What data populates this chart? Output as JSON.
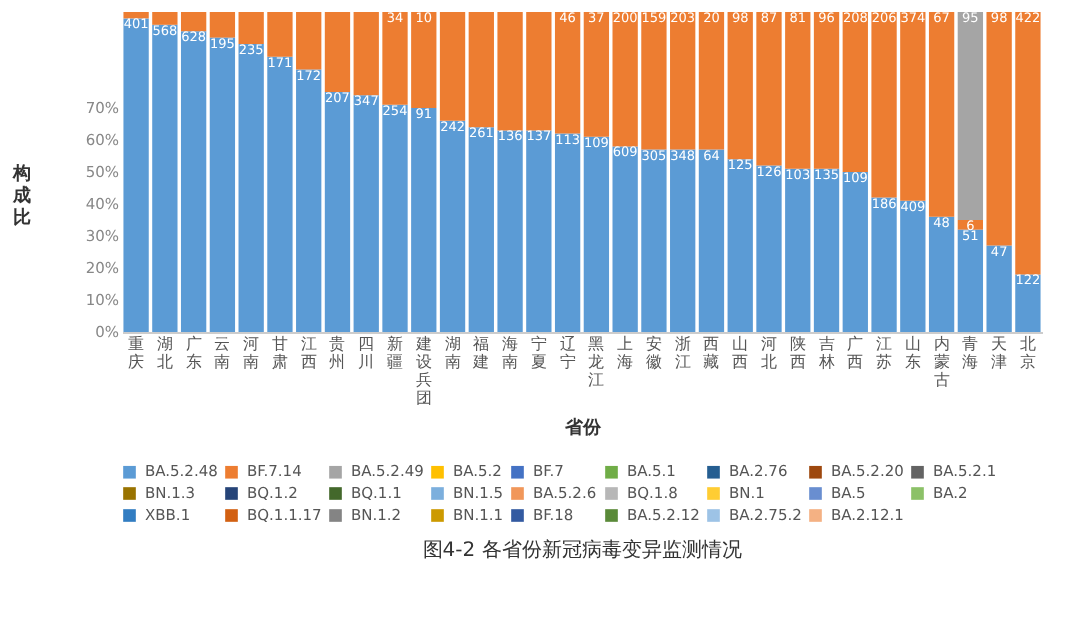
{
  "chart_data": {
    "type": "bar",
    "stacked": true,
    "title": "图4-2 各省份新冠病毒变异监测情况",
    "xlabel": "省份",
    "ylabel": "构成比",
    "categories": [
      "重庆",
      "湖北",
      "广东",
      "云南",
      "河南",
      "甘肃",
      "江西",
      "贵州",
      "四川",
      "新疆",
      "建设兵团",
      "湖南",
      "福建",
      "海南",
      "宁夏",
      "辽宁",
      "黑龙江",
      "上海",
      "安徽",
      "浙江",
      "西藏",
      "山西",
      "河北",
      "陕西",
      "吉林",
      "广西",
      "江苏",
      "山东",
      "内蒙古",
      "青海",
      "天津",
      "北京"
    ],
    "ylim": [
      0,
      100
    ],
    "yticks": [
      {
        "value": 0,
        "label": "0%"
      },
      {
        "value": 10,
        "label": "10%"
      },
      {
        "value": 20,
        "label": "20%"
      },
      {
        "value": 30,
        "label": "30%"
      },
      {
        "value": 40,
        "label": "40%"
      },
      {
        "value": 50,
        "label": "50%"
      },
      {
        "value": 60,
        "label": "60%"
      },
      {
        "value": 70,
        "label": "70%"
      }
    ],
    "legend": "bottom",
    "grid": false,
    "series": [
      {
        "name": "BA.5.2.48",
        "color": "#5b9bd5",
        "values": [
          98,
          96,
          94,
          92,
          90,
          86,
          82,
          75,
          74,
          71,
          70,
          66,
          64,
          63,
          63,
          62,
          61,
          58,
          57,
          57,
          57,
          54,
          52,
          51,
          51,
          50,
          42,
          41,
          36,
          32,
          27,
          18
        ]
      },
      {
        "name": "BF.7.14",
        "color": "#ed7d31",
        "values": [
          2,
          4,
          6,
          8,
          10,
          14,
          18,
          25,
          26,
          29,
          30,
          34,
          36,
          37,
          37,
          38,
          39,
          42,
          43,
          43,
          43,
          46,
          48,
          49,
          49,
          50,
          58,
          59,
          64,
          3,
          73,
          82
        ]
      },
      {
        "name": "BA.5.2.49",
        "color": "#a5a5a5",
        "values": [
          null,
          null,
          null,
          null,
          null,
          null,
          null,
          null,
          null,
          null,
          null,
          null,
          null,
          null,
          null,
          null,
          null,
          null,
          null,
          null,
          null,
          null,
          null,
          null,
          null,
          null,
          null,
          null,
          null,
          65,
          null,
          null
        ]
      },
      {
        "name": "BA.5.2",
        "color": "#ffc000",
        "values": [
          null,
          null,
          null,
          null,
          null,
          null,
          null,
          null,
          null,
          null,
          null,
          null,
          null,
          null,
          null,
          null,
          null,
          null,
          null,
          null,
          null,
          null,
          null,
          null,
          null,
          null,
          null,
          null,
          null,
          null,
          null,
          null
        ]
      },
      {
        "name": "BF.7",
        "color": "#4472c4",
        "values": [
          null,
          null,
          null,
          null,
          null,
          null,
          null,
          null,
          null,
          null,
          null,
          null,
          null,
          null,
          null,
          null,
          null,
          null,
          null,
          null,
          null,
          null,
          null,
          null,
          null,
          null,
          null,
          null,
          null,
          null,
          null,
          null
        ]
      },
      {
        "name": "BA.5.1",
        "color": "#70ad47",
        "values": [
          null,
          null,
          null,
          null,
          null,
          null,
          null,
          null,
          null,
          null,
          null,
          null,
          null,
          null,
          null,
          null,
          null,
          null,
          null,
          null,
          null,
          null,
          null,
          null,
          null,
          null,
          null,
          null,
          null,
          null,
          null,
          null
        ]
      },
      {
        "name": "BA.2.76",
        "color": "#255e91",
        "values": [
          null,
          null,
          null,
          null,
          null,
          null,
          null,
          null,
          null,
          null,
          null,
          null,
          null,
          null,
          null,
          null,
          null,
          null,
          null,
          null,
          null,
          null,
          null,
          null,
          null,
          null,
          null,
          null,
          null,
          null,
          null,
          null
        ]
      },
      {
        "name": "BA.5.2.20",
        "color": "#9e480e",
        "values": [
          null,
          null,
          null,
          null,
          null,
          null,
          null,
          null,
          null,
          null,
          null,
          null,
          null,
          null,
          null,
          null,
          null,
          null,
          null,
          null,
          null,
          null,
          null,
          null,
          null,
          null,
          null,
          null,
          null,
          null,
          null,
          null
        ]
      },
      {
        "name": "BA.5.2.1",
        "color": "#636363",
        "values": [
          null,
          null,
          null,
          null,
          null,
          null,
          null,
          null,
          null,
          null,
          null,
          null,
          null,
          null,
          null,
          null,
          null,
          null,
          null,
          null,
          null,
          null,
          null,
          null,
          null,
          null,
          null,
          null,
          null,
          null,
          null,
          null
        ]
      },
      {
        "name": "BN.1.3",
        "color": "#997300",
        "values": [
          null,
          null,
          null,
          null,
          null,
          null,
          null,
          null,
          null,
          null,
          null,
          null,
          null,
          null,
          null,
          null,
          null,
          null,
          null,
          null,
          null,
          null,
          null,
          null,
          null,
          null,
          null,
          null,
          null,
          null,
          null,
          null
        ]
      },
      {
        "name": "BQ.1.2",
        "color": "#264478",
        "values": [
          null,
          null,
          null,
          null,
          null,
          null,
          null,
          null,
          null,
          null,
          null,
          null,
          null,
          null,
          null,
          null,
          null,
          null,
          null,
          null,
          null,
          null,
          null,
          null,
          null,
          null,
          null,
          null,
          null,
          null,
          null,
          null
        ]
      },
      {
        "name": "BQ.1.1",
        "color": "#43682b",
        "values": [
          null,
          null,
          null,
          null,
          null,
          null,
          null,
          null,
          null,
          null,
          null,
          null,
          null,
          null,
          null,
          null,
          null,
          null,
          null,
          null,
          null,
          null,
          null,
          null,
          null,
          null,
          null,
          null,
          null,
          null,
          null,
          null
        ]
      },
      {
        "name": "BN.1.5",
        "color": "#7cafdd",
        "values": [
          null,
          null,
          null,
          null,
          null,
          null,
          null,
          null,
          null,
          null,
          null,
          null,
          null,
          null,
          null,
          null,
          null,
          null,
          null,
          null,
          null,
          null,
          null,
          null,
          null,
          null,
          null,
          null,
          null,
          null,
          null,
          null
        ]
      },
      {
        "name": "BA.5.2.6",
        "color": "#f1975a",
        "values": [
          null,
          null,
          null,
          null,
          null,
          null,
          null,
          null,
          null,
          null,
          null,
          null,
          null,
          null,
          null,
          null,
          null,
          null,
          null,
          null,
          null,
          null,
          null,
          null,
          null,
          null,
          null,
          null,
          null,
          null,
          null,
          null
        ]
      },
      {
        "name": "BQ.1.8",
        "color": "#b7b7b7",
        "values": [
          null,
          null,
          null,
          null,
          null,
          null,
          null,
          null,
          null,
          null,
          null,
          null,
          null,
          null,
          null,
          null,
          null,
          null,
          null,
          null,
          null,
          null,
          null,
          null,
          null,
          null,
          null,
          null,
          null,
          null,
          null,
          null
        ]
      },
      {
        "name": "BN.1",
        "color": "#ffcd33",
        "values": [
          null,
          null,
          null,
          null,
          null,
          null,
          null,
          null,
          null,
          null,
          null,
          null,
          null,
          null,
          null,
          null,
          null,
          null,
          null,
          null,
          null,
          null,
          null,
          null,
          null,
          null,
          null,
          null,
          null,
          null,
          null,
          null
        ]
      },
      {
        "name": "BA.5",
        "color": "#698ed0",
        "values": [
          null,
          null,
          null,
          null,
          null,
          null,
          null,
          null,
          null,
          null,
          null,
          null,
          null,
          null,
          null,
          null,
          null,
          null,
          null,
          null,
          null,
          null,
          null,
          null,
          null,
          null,
          null,
          null,
          null,
          null,
          null,
          null
        ]
      },
      {
        "name": "BA.2",
        "color": "#8cc168",
        "values": [
          null,
          null,
          null,
          null,
          null,
          null,
          null,
          null,
          null,
          null,
          null,
          null,
          null,
          null,
          null,
          null,
          null,
          null,
          null,
          null,
          null,
          null,
          null,
          null,
          null,
          null,
          null,
          null,
          null,
          null,
          null,
          null
        ]
      },
      {
        "name": "XBB.1",
        "color": "#327dc2",
        "values": [
          null,
          null,
          null,
          null,
          null,
          null,
          null,
          null,
          null,
          null,
          null,
          null,
          null,
          null,
          null,
          null,
          null,
          null,
          null,
          null,
          null,
          null,
          null,
          null,
          null,
          null,
          null,
          null,
          null,
          null,
          null,
          null
        ]
      },
      {
        "name": "BQ.1.1.17",
        "color": "#d26012",
        "values": [
          null,
          null,
          null,
          null,
          null,
          null,
          null,
          null,
          null,
          null,
          null,
          null,
          null,
          null,
          null,
          null,
          null,
          null,
          null,
          null,
          null,
          null,
          null,
          null,
          null,
          null,
          null,
          null,
          null,
          null,
          null,
          null
        ]
      },
      {
        "name": "BN.1.2",
        "color": "#848484",
        "values": [
          null,
          null,
          null,
          null,
          null,
          null,
          null,
          null,
          null,
          null,
          null,
          null,
          null,
          null,
          null,
          null,
          null,
          null,
          null,
          null,
          null,
          null,
          null,
          null,
          null,
          null,
          null,
          null,
          null,
          null,
          null,
          null
        ]
      },
      {
        "name": "BN.1.1",
        "color": "#cc9a00",
        "values": [
          null,
          null,
          null,
          null,
          null,
          null,
          null,
          null,
          null,
          null,
          null,
          null,
          null,
          null,
          null,
          null,
          null,
          null,
          null,
          null,
          null,
          null,
          null,
          null,
          null,
          null,
          null,
          null,
          null,
          null,
          null,
          null
        ]
      },
      {
        "name": "BF.18",
        "color": "#335aa1",
        "values": [
          null,
          null,
          null,
          null,
          null,
          null,
          null,
          null,
          null,
          null,
          null,
          null,
          null,
          null,
          null,
          null,
          null,
          null,
          null,
          null,
          null,
          null,
          null,
          null,
          null,
          null,
          null,
          null,
          null,
          null,
          null,
          null
        ]
      },
      {
        "name": "BA.5.2.12",
        "color": "#5a8a39",
        "values": [
          null,
          null,
          null,
          null,
          null,
          null,
          null,
          null,
          null,
          null,
          null,
          null,
          null,
          null,
          null,
          null,
          null,
          null,
          null,
          null,
          null,
          null,
          null,
          null,
          null,
          null,
          null,
          null,
          null,
          null,
          null,
          null
        ]
      },
      {
        "name": "BA.2.75.2",
        "color": "#9dc3e6",
        "values": [
          null,
          null,
          null,
          null,
          null,
          null,
          null,
          null,
          null,
          null,
          null,
          null,
          null,
          null,
          null,
          null,
          null,
          null,
          null,
          null,
          null,
          null,
          null,
          null,
          null,
          null,
          null,
          null,
          null,
          null,
          null,
          null
        ]
      },
      {
        "name": "BA.2.12.1",
        "color": "#f4b183",
        "values": [
          null,
          null,
          null,
          null,
          null,
          null,
          null,
          null,
          null,
          null,
          null,
          null,
          null,
          null,
          null,
          null,
          null,
          null,
          null,
          null,
          null,
          null,
          null,
          null,
          null,
          null,
          null,
          null,
          null,
          null,
          null,
          null
        ]
      }
    ],
    "annotations": [
      {
        "text": "401",
        "x": "重庆",
        "y": 98
      },
      {
        "text": "568",
        "x": "湖北",
        "y": 96
      },
      {
        "text": "628",
        "x": "广东",
        "y": 94
      },
      {
        "text": "195",
        "x": "云南",
        "y": 92
      },
      {
        "text": "235",
        "x": "河南",
        "y": 90
      },
      {
        "text": "171",
        "x": "甘肃",
        "y": 86
      },
      {
        "text": "172",
        "x": "江西",
        "y": 82
      },
      {
        "text": "207",
        "x": "贵州",
        "y": 75
      },
      {
        "text": "347",
        "x": "四川",
        "y": 74
      },
      {
        "text": "254",
        "x": "新疆",
        "y": 71
      },
      {
        "text": "91",
        "x": "建设兵团",
        "y": 70
      },
      {
        "text": "242",
        "x": "湖南",
        "y": 66
      },
      {
        "text": "261",
        "x": "福建",
        "y": 64
      },
      {
        "text": "136",
        "x": "海南",
        "y": 63
      },
      {
        "text": "137",
        "x": "宁夏",
        "y": 63
      },
      {
        "text": "113",
        "x": "辽宁",
        "y": 62
      },
      {
        "text": "109",
        "x": "黑龙江",
        "y": 61
      },
      {
        "text": "609",
        "x": "上海",
        "y": 58
      },
      {
        "text": "305",
        "x": "安徽",
        "y": 57
      },
      {
        "text": "348",
        "x": "浙江",
        "y": 57
      },
      {
        "text": "64",
        "x": "西藏",
        "y": 57
      },
      {
        "text": "125",
        "x": "山西",
        "y": 54
      },
      {
        "text": "126",
        "x": "河北",
        "y": 52
      },
      {
        "text": "103",
        "x": "陕西",
        "y": 51
      },
      {
        "text": "135",
        "x": "吉林",
        "y": 51
      },
      {
        "text": "109",
        "x": "广西",
        "y": 50
      },
      {
        "text": "186",
        "x": "江苏",
        "y": 42
      },
      {
        "text": "409",
        "x": "山东",
        "y": 41
      },
      {
        "text": "48",
        "x": "内蒙古",
        "y": 36
      },
      {
        "text": "51",
        "x": "青海",
        "y": 32
      },
      {
        "text": "47",
        "x": "天津",
        "y": 27
      },
      {
        "text": "122",
        "x": "北京",
        "y": 18
      },
      {
        "text": "34",
        "x": "新疆",
        "y": 100
      },
      {
        "text": "10",
        "x": "建设兵团",
        "y": 100
      },
      {
        "text": "46",
        "x": "辽宁",
        "y": 100
      },
      {
        "text": "37",
        "x": "黑龙江",
        "y": 100
      },
      {
        "text": "200",
        "x": "上海",
        "y": 100
      },
      {
        "text": "159",
        "x": "安徽",
        "y": 100
      },
      {
        "text": "203",
        "x": "浙江",
        "y": 100
      },
      {
        "text": "20",
        "x": "西藏",
        "y": 100
      },
      {
        "text": "98",
        "x": "山西",
        "y": 100
      },
      {
        "text": "87",
        "x": "河北",
        "y": 100
      },
      {
        "text": "81",
        "x": "陕西",
        "y": 100
      },
      {
        "text": "96",
        "x": "吉林",
        "y": 100
      },
      {
        "text": "208",
        "x": "广西",
        "y": 100
      },
      {
        "text": "206",
        "x": "江苏",
        "y": 100
      },
      {
        "text": "374",
        "x": "山东",
        "y": 100
      },
      {
        "text": "67",
        "x": "内蒙古",
        "y": 100
      },
      {
        "text": "6",
        "x": "青海",
        "y": 35
      },
      {
        "text": "95",
        "x": "青海",
        "y": 100
      },
      {
        "text": "98",
        "x": "天津",
        "y": 100
      },
      {
        "text": "422",
        "x": "北京",
        "y": 100
      }
    ]
  }
}
